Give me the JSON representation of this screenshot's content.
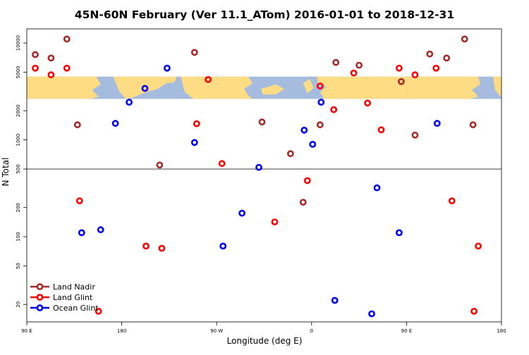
{
  "chart_data": {
    "type": "scatter",
    "title": "45N-60N February (Ver 11.1_ATom)   2016-01-01 to 2018-12-31",
    "xlabel": "Longitude (deg E)",
    "ylabel": "N Total",
    "x_ticks": [
      {
        "value": 90,
        "label": "90 E"
      },
      {
        "value": 180,
        "label": "180"
      },
      {
        "value": 270,
        "label": "90 W"
      },
      {
        "value": 360,
        "label": "0"
      },
      {
        "value": 450,
        "label": "90 E"
      },
      {
        "value": 540,
        "label": "180"
      }
    ],
    "xlim": [
      90,
      540
    ],
    "y_scale": "log",
    "ylim": [
      13.2,
      14000
    ],
    "y_ticks": [
      20,
      50,
      100,
      200,
      500,
      1000,
      2000,
      5000,
      10000
    ],
    "reference_line": 500,
    "map_band": {
      "ymin": 2650,
      "ymax": 4500,
      "land_color": "#fddc83",
      "ocean_color": "#a6bcde"
    },
    "legend_position": "bottom-left",
    "series": [
      {
        "name": "Land Nadir",
        "color": "#a52a2a",
        "x": [
          98,
          113,
          128,
          138,
          216,
          249,
          313,
          340,
          352,
          368,
          383,
          405,
          445,
          458,
          472,
          488,
          505,
          513
        ],
        "y": [
          7600,
          7000,
          11000,
          1430,
          550,
          8000,
          1530,
          720,
          227,
          1430,
          6300,
          5900,
          4000,
          1120,
          7700,
          7000,
          11000,
          1430
        ]
      },
      {
        "name": "Land Glint",
        "color": "#ff0000",
        "x": [
          98,
          113,
          128,
          140,
          158,
          203,
          218,
          251,
          262,
          275,
          325,
          356,
          368,
          381,
          400,
          413,
          426,
          443,
          458,
          478,
          493,
          514,
          518
        ],
        "y": [
          5500,
          4700,
          5500,
          235,
          17,
          80,
          76,
          1470,
          4200,
          570,
          142,
          380,
          3600,
          2050,
          4900,
          2400,
          1270,
          5500,
          4700,
          5500,
          235,
          17,
          80
        ]
      },
      {
        "name": "Ocean Glint",
        "color": "#0000ee",
        "x": [
          142,
          160,
          174,
          187,
          202,
          223,
          249,
          276,
          294,
          310,
          353,
          361,
          369,
          382,
          417,
          422,
          443,
          479
        ],
        "y": [
          110,
          118,
          1480,
          2450,
          3400,
          5500,
          940,
          80,
          175,
          520,
          1260,
          900,
          2450,
          22,
          16,
          320,
          110,
          1480
        ]
      }
    ]
  }
}
